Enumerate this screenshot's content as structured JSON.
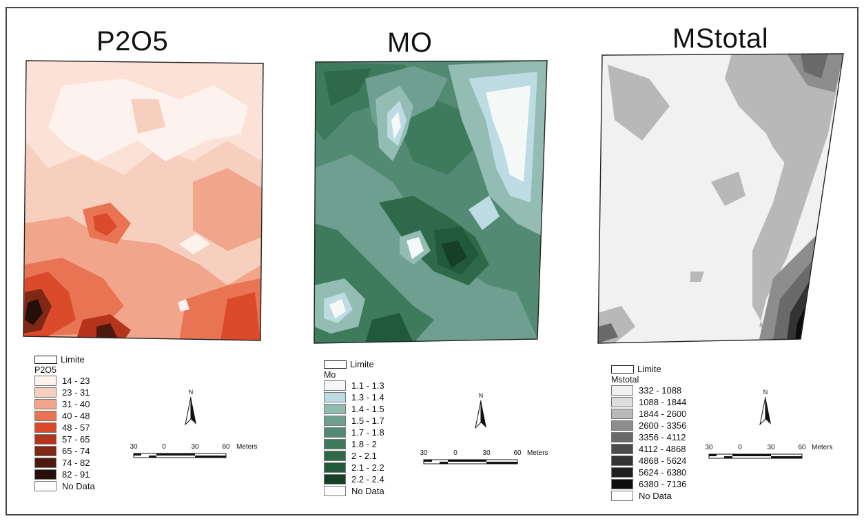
{
  "maps": [
    {
      "title": "P2O5",
      "legend": {
        "limit_label": "Limite",
        "field_label": "P2O5",
        "classes": [
          {
            "label": "14 - 23",
            "color": "#fdf2ee"
          },
          {
            "label": "23 - 31",
            "color": "#f7cfbf"
          },
          {
            "label": "31 - 40",
            "color": "#f1a58b"
          },
          {
            "label": "40 - 48",
            "color": "#e97454"
          },
          {
            "label": "48 - 57",
            "color": "#db4a2a"
          },
          {
            "label": "57 - 65",
            "color": "#b5341c"
          },
          {
            "label": "65 - 74",
            "color": "#812716"
          },
          {
            "label": "74 - 82",
            "color": "#4e1a10"
          },
          {
            "label": "82 - 91",
            "color": "#241008"
          }
        ],
        "nodata_label": "No Data"
      }
    },
    {
      "title": "MO",
      "legend": {
        "limit_label": "Limite",
        "field_label": "Mo",
        "classes": [
          {
            "label": "1.1 - 1.3",
            "color": "#f4f8f7"
          },
          {
            "label": "1.3 - 1.4",
            "color": "#bcdbe3"
          },
          {
            "label": "1.4 - 1.5",
            "color": "#93bcb2"
          },
          {
            "label": "1.5 - 1.7",
            "color": "#6f9f90"
          },
          {
            "label": "1.7 - 1.8",
            "color": "#538a74"
          },
          {
            "label": "1.8 - 2",
            "color": "#3e7a5c"
          },
          {
            "label": "2 - 2.1",
            "color": "#2e6a4a"
          },
          {
            "label": "2.1 - 2.2",
            "color": "#215a3b"
          },
          {
            "label": "2.2 - 2.4",
            "color": "#163f28"
          }
        ],
        "nodata_label": "No Data"
      }
    },
    {
      "title": "MStotal",
      "legend": {
        "limit_label": "Limite",
        "field_label": "Mstotal",
        "classes": [
          {
            "label": "332 - 1088",
            "color": "#f1f1f1"
          },
          {
            "label": "1088 - 1844",
            "color": "#dddddd"
          },
          {
            "label": "1844 - 2600",
            "color": "#b8b8b8"
          },
          {
            "label": "2600 - 3356",
            "color": "#8d8d8d"
          },
          {
            "label": "3356 - 4112",
            "color": "#6a6a6a"
          },
          {
            "label": "4112 - 4868",
            "color": "#4b4b4b"
          },
          {
            "label": "4868 - 5624",
            "color": "#333333"
          },
          {
            "label": "5624 - 6380",
            "color": "#1f1f1f"
          },
          {
            "label": "6380 - 7136",
            "color": "#0d0d0d"
          }
        ],
        "nodata_label": "No Data"
      }
    }
  ],
  "north_label": "N",
  "scale": {
    "ticks": [
      "30",
      "0",
      "30",
      "60"
    ],
    "unit": "Meters"
  },
  "colors": {
    "nodata": "#ffffff",
    "frame": "#444444"
  }
}
